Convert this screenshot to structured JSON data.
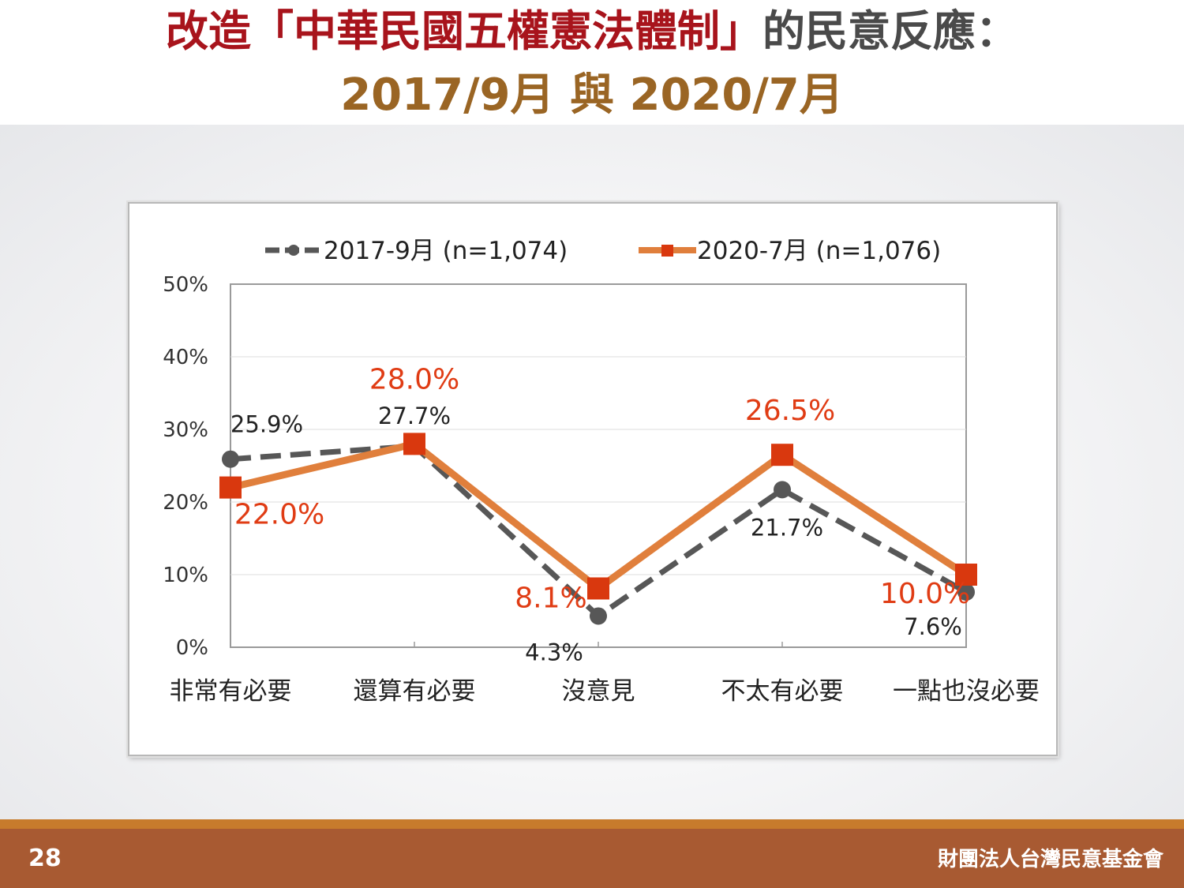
{
  "slide": {
    "title_line1_red": "改造「中華民國五權憲法體制」",
    "title_line1_dark": "的民意反應：",
    "title_line2": "2017/9月 與 2020/7月",
    "page_number": "28",
    "organization": "財團法人台灣民意基金會"
  },
  "colors": {
    "series_2017": "#575757",
    "series_2020": "#e07f3c",
    "marker_2020": "#d9380e",
    "label_2020": "#e03c14",
    "title_red": "#a8141c",
    "title_gold": "#9a6524",
    "footer": "#a85a32"
  },
  "chart_data": {
    "type": "line",
    "categories": [
      "非常有必要",
      "還算有必要",
      "沒意見",
      "不太有必要",
      "一點也沒必要"
    ],
    "series": [
      {
        "name": "2017-9月  (n=1,074)",
        "values": [
          25.9,
          27.7,
          4.3,
          21.7,
          7.6
        ],
        "labels": [
          "25.9%",
          "27.7%",
          "4.3%",
          "21.7%",
          "7.6%"
        ],
        "style": "dashed",
        "marker": "circle"
      },
      {
        "name": "2020-7月  (n=1,076)",
        "values": [
          22.0,
          28.0,
          8.1,
          26.5,
          10.0
        ],
        "labels": [
          "22.0%",
          "28.0%",
          "8.1%",
          "26.5%",
          "10.0%"
        ],
        "style": "solid",
        "marker": "square"
      }
    ],
    "ylim": [
      0,
      50
    ],
    "yticks": [
      "0%",
      "10%",
      "20%",
      "30%",
      "40%",
      "50%"
    ],
    "grid": true,
    "legend": "top"
  }
}
